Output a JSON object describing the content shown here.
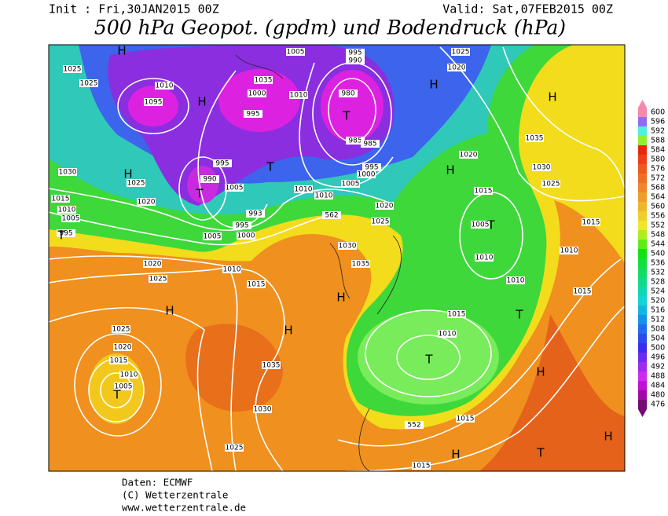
{
  "header": {
    "init": "Init : Fri,30JAN2015 00Z",
    "valid": "Valid: Sat,07FEB2015 00Z",
    "title": "500 hPa Geopot. (gpdm) und Bodendruck (hPa)"
  },
  "colorbar": [
    "600",
    "596",
    "592",
    "588",
    "584",
    "580",
    "576",
    "572",
    "568",
    "564",
    "560",
    "556",
    "552",
    "548",
    "544",
    "540",
    "536",
    "532",
    "528",
    "524",
    "520",
    "516",
    "512",
    "508",
    "504",
    "500",
    "496",
    "492",
    "488",
    "484",
    "480",
    "476"
  ],
  "map_labels": [
    "H",
    "1025",
    "1025",
    "1010",
    "1095",
    "H",
    "1005",
    "995",
    "990",
    "1035",
    "1000",
    "1010",
    "980",
    "T",
    "995",
    "985",
    "985",
    "995",
    "1000",
    "1005",
    "H",
    "1030",
    "1025",
    "1020",
    "1015",
    "1010",
    "1005",
    "995",
    "T",
    "990",
    "T",
    "995",
    "1005",
    "1010",
    "1010",
    "T",
    "993",
    "995",
    "1000",
    "1005",
    "562",
    "1020",
    "1025",
    "1025",
    "1020",
    "H",
    "H",
    "1035",
    "1030",
    "1025",
    "1020",
    "H",
    "1015",
    "T",
    "1005",
    "1010",
    "1010",
    "1015",
    "1010",
    "1015",
    "T",
    "1015",
    "1010",
    "T",
    "H",
    "H",
    "T",
    "H",
    "1015",
    "552",
    "1015",
    "1030",
    "1035",
    "H",
    "1010",
    "1015",
    "1020",
    "1025",
    "H",
    "1025",
    "1020",
    "1015",
    "1010",
    "1005",
    "T",
    "H",
    "1035",
    "1030",
    "1025"
  ],
  "footer": [
    "Daten: ECMWF",
    "(C) Wetterzentrale",
    "www.wetterzentrale.de"
  ]
}
